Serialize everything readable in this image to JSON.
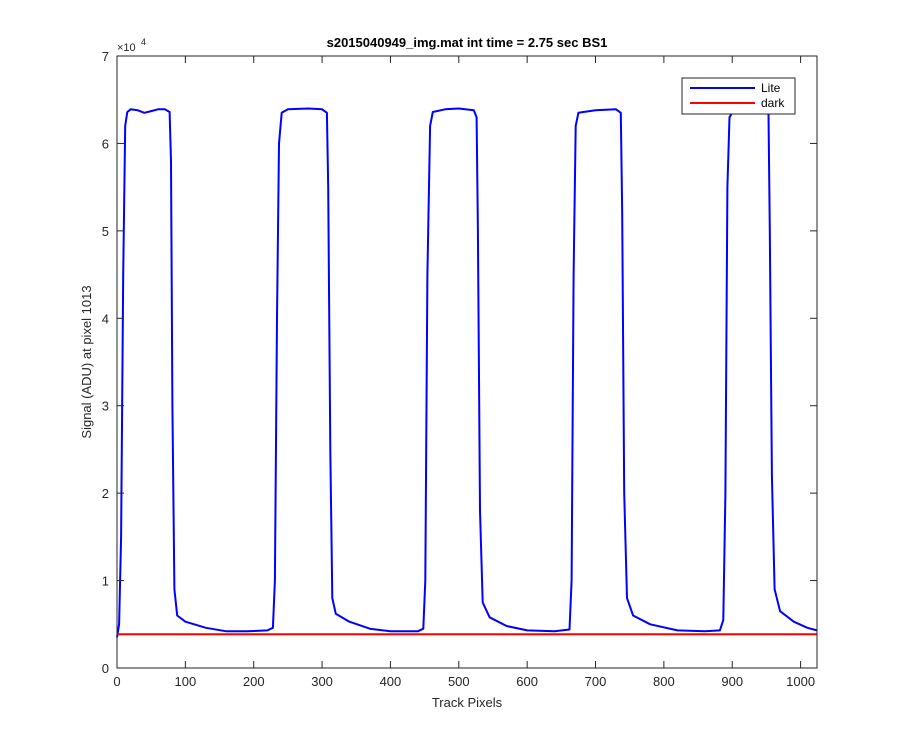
{
  "chart_data": {
    "type": "line",
    "title": "s2015040949_img.mat int time = 2.75 sec   BS1",
    "xlabel": "Track Pixels",
    "ylabel": "Signal (ADU) at pixel 1013",
    "xlim": [
      0,
      1024
    ],
    "ylim": [
      0,
      70000
    ],
    "xticks": [
      0,
      100,
      200,
      300,
      400,
      500,
      600,
      700,
      800,
      900,
      1000
    ],
    "yticks": [
      0,
      10000,
      20000,
      30000,
      40000,
      50000,
      60000,
      70000
    ],
    "ytick_labels": [
      "0",
      "1",
      "2",
      "3",
      "4",
      "5",
      "6",
      "7"
    ],
    "y_exponent": {
      "base": "×10",
      "power": "4"
    },
    "grid": false,
    "legend_position": "top-right",
    "series": [
      {
        "name": "Lite",
        "color": "#0000ff",
        "points": [
          [
            0,
            3500
          ],
          [
            3,
            5000
          ],
          [
            6,
            15000
          ],
          [
            9,
            45000
          ],
          [
            12,
            62000
          ],
          [
            15,
            63600
          ],
          [
            20,
            63900
          ],
          [
            30,
            63800
          ],
          [
            40,
            63500
          ],
          [
            50,
            63700
          ],
          [
            60,
            63900
          ],
          [
            70,
            63900
          ],
          [
            77,
            63600
          ],
          [
            79,
            58000
          ],
          [
            81,
            30000
          ],
          [
            84,
            9000
          ],
          [
            88,
            6000
          ],
          [
            100,
            5300
          ],
          [
            130,
            4600
          ],
          [
            160,
            4200
          ],
          [
            190,
            4200
          ],
          [
            220,
            4300
          ],
          [
            228,
            4600
          ],
          [
            231,
            10000
          ],
          [
            234,
            40000
          ],
          [
            237,
            60000
          ],
          [
            241,
            63500
          ],
          [
            250,
            63900
          ],
          [
            280,
            64000
          ],
          [
            300,
            63900
          ],
          [
            307,
            63500
          ],
          [
            309,
            55000
          ],
          [
            312,
            25000
          ],
          [
            315,
            8000
          ],
          [
            320,
            6200
          ],
          [
            340,
            5300
          ],
          [
            370,
            4500
          ],
          [
            400,
            4200
          ],
          [
            440,
            4200
          ],
          [
            448,
            4500
          ],
          [
            451,
            10000
          ],
          [
            454,
            45000
          ],
          [
            458,
            62000
          ],
          [
            462,
            63600
          ],
          [
            480,
            63900
          ],
          [
            500,
            64000
          ],
          [
            522,
            63800
          ],
          [
            526,
            63000
          ],
          [
            528,
            50000
          ],
          [
            531,
            18000
          ],
          [
            535,
            7500
          ],
          [
            545,
            5800
          ],
          [
            570,
            4800
          ],
          [
            600,
            4300
          ],
          [
            640,
            4200
          ],
          [
            662,
            4400
          ],
          [
            665,
            10000
          ],
          [
            668,
            45000
          ],
          [
            671,
            62000
          ],
          [
            675,
            63500
          ],
          [
            700,
            63800
          ],
          [
            730,
            63900
          ],
          [
            737,
            63500
          ],
          [
            739,
            52000
          ],
          [
            742,
            20000
          ],
          [
            746,
            8000
          ],
          [
            755,
            6000
          ],
          [
            780,
            5000
          ],
          [
            820,
            4300
          ],
          [
            860,
            4200
          ],
          [
            882,
            4300
          ],
          [
            887,
            5500
          ],
          [
            890,
            20000
          ],
          [
            893,
            55000
          ],
          [
            896,
            63000
          ],
          [
            900,
            63500
          ],
          [
            930,
            63600
          ],
          [
            953,
            63400
          ],
          [
            955,
            50000
          ],
          [
            958,
            22000
          ],
          [
            962,
            9000
          ],
          [
            970,
            6500
          ],
          [
            990,
            5300
          ],
          [
            1010,
            4600
          ],
          [
            1024,
            4300
          ]
        ]
      },
      {
        "name": "dark",
        "color": "#ff0000",
        "points": [
          [
            0,
            3850
          ],
          [
            1024,
            3850
          ]
        ]
      }
    ]
  }
}
